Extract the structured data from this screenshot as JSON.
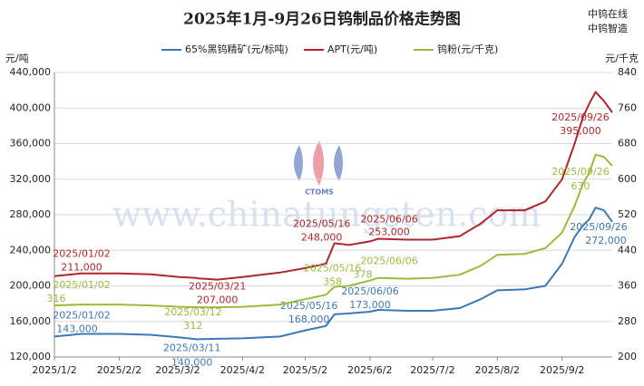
{
  "chart_data": {
    "type": "line",
    "title": "2025年1月-9月26日钨制品价格走势图",
    "brand": [
      "中钨在线",
      "中钨智造"
    ],
    "watermark": "www.chinatungsten.com",
    "logo": "CTOMS",
    "y_label": "元/吨",
    "y2_label": "元/千克",
    "x": [
      "2025/1/2",
      "2025/1/15",
      "2025/2/2",
      "2025/2/17",
      "2025/3/3",
      "2025/3/11",
      "2025/3/12",
      "2025/3/21",
      "2025/4/2",
      "2025/4/20",
      "2025/5/2",
      "2025/5/12",
      "2025/5/16",
      "2025/5/23",
      "2025/6/2",
      "2025/6/6",
      "2025/6/20",
      "2025/7/2",
      "2025/7/15",
      "2025/7/25",
      "2025/8/2",
      "2025/8/15",
      "2025/8/25",
      "2025/9/2",
      "2025/9/8",
      "2025/9/12",
      "2025/9/15",
      "2025/9/18",
      "2025/9/22",
      "2025/9/26"
    ],
    "xlim": [
      "2025/1/2",
      "2025/9/26"
    ],
    "xticks": [
      "2025/1/2",
      "2025/2/2",
      "2025/3/2",
      "2025/4/2",
      "2025/5/2",
      "2025/6/2",
      "2025/7/2",
      "2025/8/2",
      "2025/9/2"
    ],
    "ylim": [
      120000,
      440000
    ],
    "yticks": [
      {
        "value": 120000,
        "label": "120,000"
      },
      {
        "value": 160000,
        "label": "160,000"
      },
      {
        "value": 200000,
        "label": "200,000"
      },
      {
        "value": 240000,
        "label": "240,000"
      },
      {
        "value": 280000,
        "label": "280,000"
      },
      {
        "value": 320000,
        "label": "320,000"
      },
      {
        "value": 360000,
        "label": "360,000"
      },
      {
        "value": 400000,
        "label": "400,000"
      },
      {
        "value": 440000,
        "label": "440,000"
      }
    ],
    "y2lim": [
      200,
      840
    ],
    "y2ticks": [
      200,
      280,
      360,
      440,
      520,
      600,
      680,
      760,
      840
    ],
    "grid": true,
    "series": [
      {
        "name": "65%黑钨精矿(元/标吨)",
        "color": "#3c78b4",
        "values": [
          143000,
          146000,
          146000,
          145000,
          142000,
          140000,
          140000,
          140500,
          141000,
          143000,
          150000,
          155000,
          168000,
          169000,
          171000,
          173000,
          172000,
          172000,
          175000,
          185000,
          195000,
          196000,
          200000,
          225000,
          255000,
          268000,
          275000,
          288000,
          285000,
          272000
        ],
        "annotations": [
          {
            "date": "2025/01/02",
            "label": "143,000"
          },
          {
            "date": "2025/03/11",
            "label": "140,000"
          },
          {
            "date": "2025/05/16",
            "label": "168,000"
          },
          {
            "date": "2025/06/06",
            "label": "173,000"
          },
          {
            "date": "2025/09/26",
            "label": "272,000"
          }
        ]
      },
      {
        "name": "APT(元/吨)",
        "color": "#b0262a",
        "values": [
          211000,
          214000,
          214000,
          213000,
          210000,
          209000,
          208500,
          207000,
          210000,
          215000,
          220000,
          225000,
          248000,
          246000,
          250000,
          253000,
          252000,
          252000,
          256000,
          270000,
          285000,
          285000,
          295000,
          320000,
          360000,
          390000,
          405000,
          418000,
          408000,
          395000
        ],
        "annotations": [
          {
            "date": "2025/01/02",
            "label": "211,000"
          },
          {
            "date": "2025/03/21",
            "label": "207,000"
          },
          {
            "date": "2025/05/16",
            "label": "248,000"
          },
          {
            "date": "2025/06/06",
            "label": "253,000"
          },
          {
            "date": "2025/09/26",
            "label": "395,000"
          }
        ]
      },
      {
        "name": "钨粉(元/千克)",
        "color": "#9bbb3b",
        "axis": "y2",
        "values": [
          316,
          318,
          318,
          316,
          313,
          312,
          312,
          312,
          313,
          318,
          330,
          340,
          358,
          360,
          372,
          378,
          376,
          378,
          385,
          405,
          430,
          432,
          445,
          480,
          540,
          590,
          615,
          655,
          650,
          630
        ],
        "annotations": [
          {
            "date": "2025/01/02",
            "label": "316"
          },
          {
            "date": "2025/03/12",
            "label": "312"
          },
          {
            "date": "2025/05/16",
            "label": "358"
          },
          {
            "date": "2025/06/06",
            "label": "378"
          },
          {
            "date": "2025/09/26",
            "label": "630"
          }
        ]
      }
    ]
  }
}
